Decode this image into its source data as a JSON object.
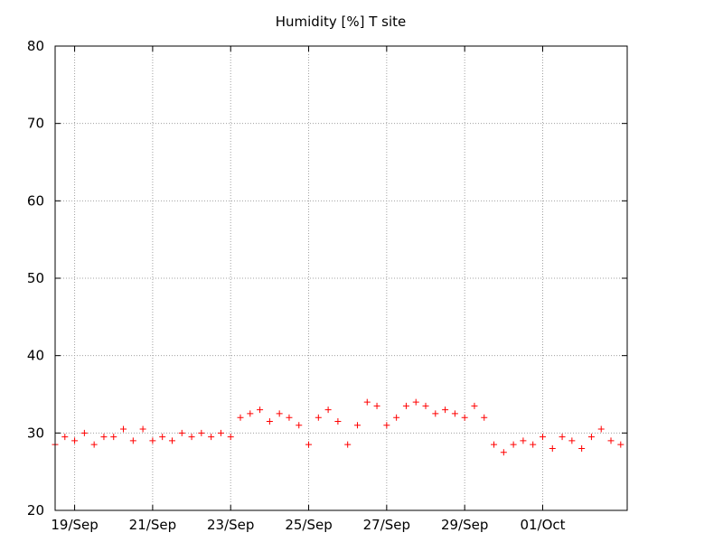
{
  "chart_data": {
    "type": "scatter",
    "title": "Humidity [%] T site",
    "xlabel": "",
    "ylabel": "",
    "ylim": [
      20,
      80
    ],
    "yticks": [
      20,
      30,
      40,
      50,
      60,
      70,
      80
    ],
    "xlim": [
      "2018-09-18 12:00",
      "2018-10-03 04:00"
    ],
    "xticks": [
      {
        "date": "2018-09-19",
        "label": "19/Sep"
      },
      {
        "date": "2018-09-21",
        "label": "21/Sep"
      },
      {
        "date": "2018-09-23",
        "label": "23/Sep"
      },
      {
        "date": "2018-09-25",
        "label": "25/Sep"
      },
      {
        "date": "2018-09-27",
        "label": "27/Sep"
      },
      {
        "date": "2018-09-29",
        "label": "29/Sep"
      },
      {
        "date": "2018-10-01",
        "label": "01/Oct"
      }
    ],
    "grid": true,
    "marker": "+",
    "color": "#ff0000",
    "series": [
      {
        "x": [
          "2018-09-18 12:00",
          "2018-09-18 18:00",
          "2018-09-19 00:00",
          "2018-09-19 06:00",
          "2018-09-19 12:00",
          "2018-09-19 18:00",
          "2018-09-20 00:00",
          "2018-09-20 06:00",
          "2018-09-20 12:00",
          "2018-09-20 18:00",
          "2018-09-21 00:00",
          "2018-09-21 06:00",
          "2018-09-21 12:00",
          "2018-09-21 18:00",
          "2018-09-22 00:00",
          "2018-09-22 06:00",
          "2018-09-22 12:00",
          "2018-09-22 18:00",
          "2018-09-23 00:00",
          "2018-09-23 06:00",
          "2018-09-23 12:00",
          "2018-09-23 18:00",
          "2018-09-24 00:00",
          "2018-09-24 06:00",
          "2018-09-24 12:00",
          "2018-09-24 18:00",
          "2018-09-25 00:00",
          "2018-09-25 06:00",
          "2018-09-25 12:00",
          "2018-09-25 18:00",
          "2018-09-26 00:00",
          "2018-09-26 06:00",
          "2018-09-26 12:00",
          "2018-09-26 18:00",
          "2018-09-27 00:00",
          "2018-09-27 06:00",
          "2018-09-27 12:00",
          "2018-09-27 18:00",
          "2018-09-28 00:00",
          "2018-09-28 06:00",
          "2018-09-28 12:00",
          "2018-09-28 18:00",
          "2018-09-29 00:00",
          "2018-09-29 06:00",
          "2018-09-29 12:00",
          "2018-09-29 18:00",
          "2018-09-30 00:00",
          "2018-09-30 06:00",
          "2018-09-30 12:00",
          "2018-09-30 18:00",
          "2018-10-01 00:00",
          "2018-10-01 06:00",
          "2018-10-01 12:00",
          "2018-10-01 18:00",
          "2018-10-02 00:00",
          "2018-10-02 06:00",
          "2018-10-02 12:00",
          "2018-10-02 18:00",
          "2018-10-03 00:00"
        ],
        "y": [
          28.5,
          29.5,
          29.0,
          30.0,
          28.5,
          29.5,
          29.5,
          30.5,
          29.0,
          30.5,
          29.0,
          29.5,
          29.0,
          30.0,
          29.5,
          30.0,
          29.5,
          30.0,
          29.5,
          32.0,
          32.5,
          33.0,
          31.5,
          32.5,
          32.0,
          31.0,
          28.5,
          32.0,
          33.0,
          31.5,
          28.5,
          31.0,
          34.0,
          33.5,
          31.0,
          32.0,
          33.5,
          34.0,
          33.5,
          32.5,
          33.0,
          32.5,
          32.0,
          33.5,
          32.0,
          28.5,
          27.5,
          28.5,
          29.0,
          28.5,
          29.5,
          28.0,
          29.5,
          29.0,
          28.0,
          29.5,
          30.5,
          29.0,
          28.5
        ]
      }
    ]
  }
}
